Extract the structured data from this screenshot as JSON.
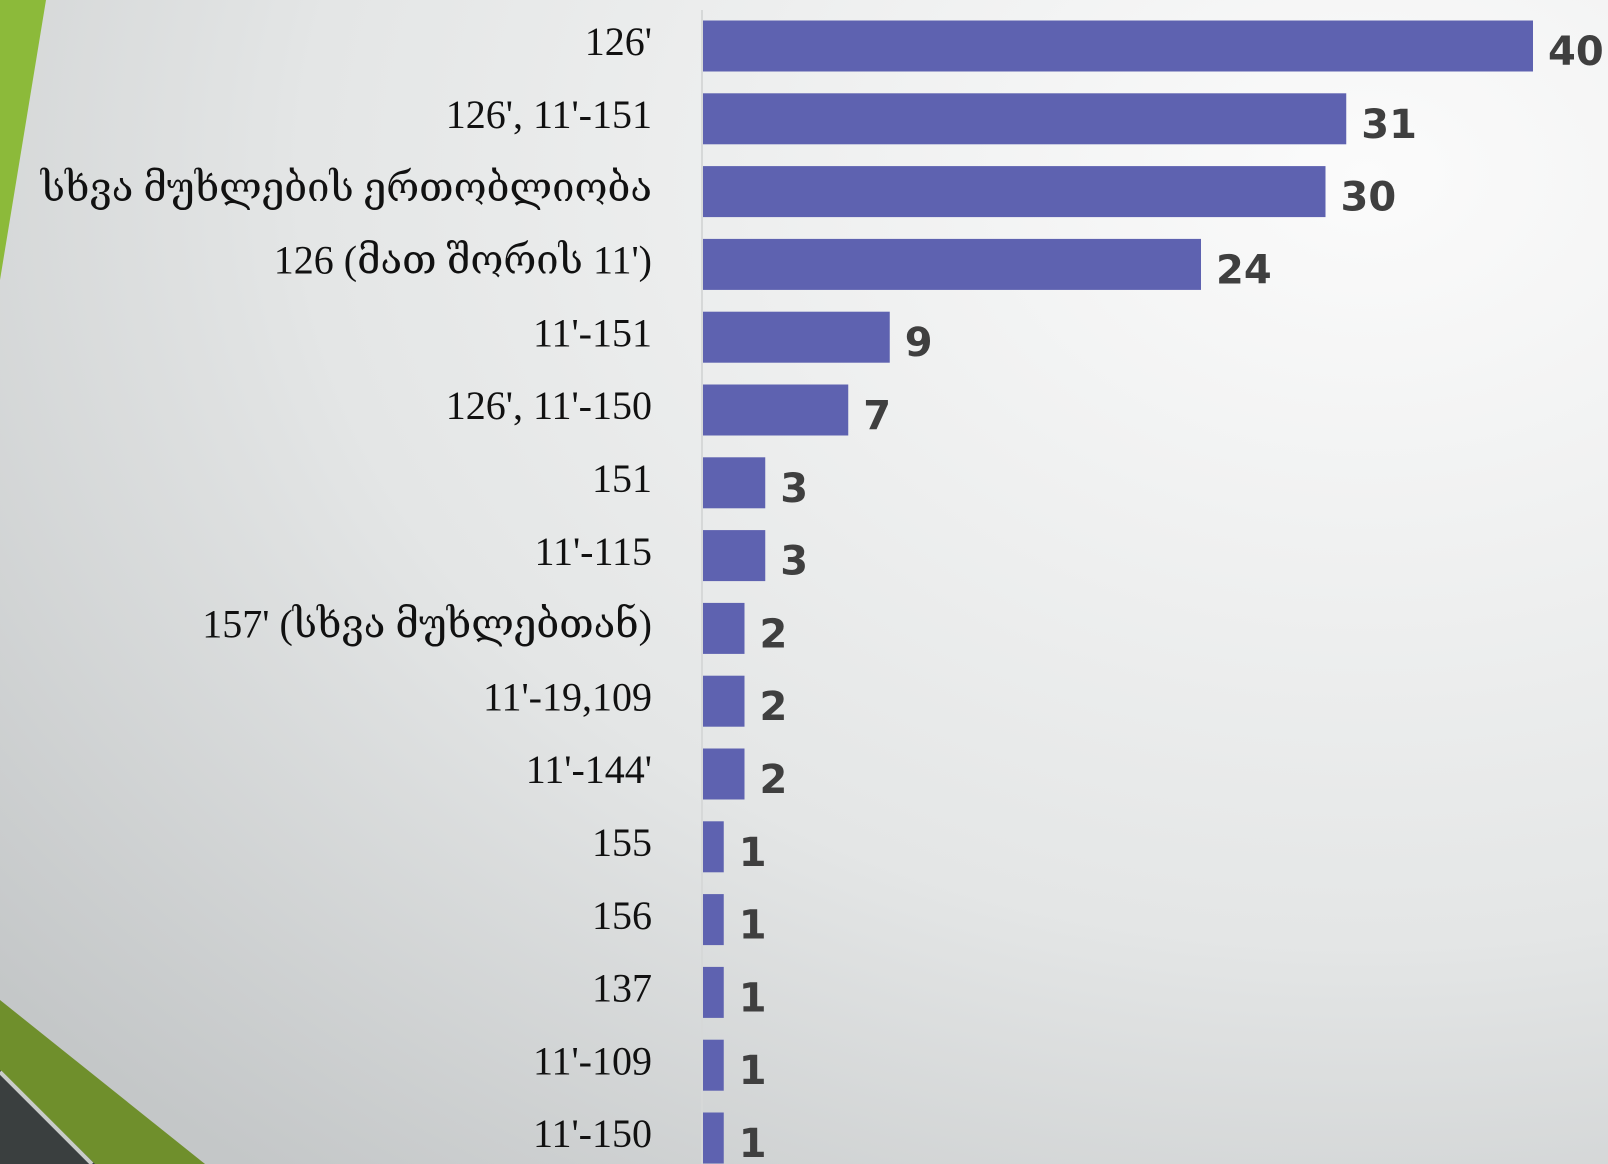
{
  "chart_data": {
    "type": "bar",
    "orientation": "horizontal",
    "color": "#5e62b0",
    "categories": [
      "126'",
      "126', 11'-151",
      "სხვა მუხლების ერთობლიობა",
      "126 (მათ შორის 11')",
      "11'-151",
      "126', 11'-150",
      "151",
      "11'-115",
      "157' (სხვა მუხლებთან)",
      "11'-19,109",
      "11'-144'",
      "155",
      "156",
      "137",
      "11'-109",
      "11'-150"
    ],
    "values": [
      40,
      31,
      30,
      24,
      9,
      7,
      3,
      3,
      2,
      2,
      2,
      1,
      1,
      1,
      1,
      1
    ]
  }
}
